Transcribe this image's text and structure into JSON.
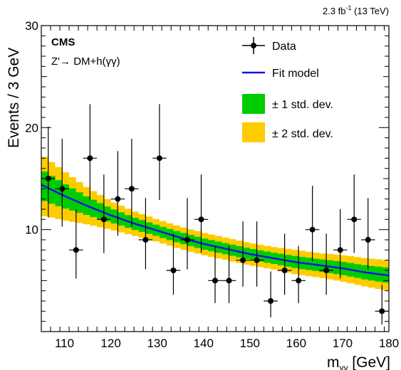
{
  "chart_data": {
    "type": "scatter",
    "header_lumi": "2.3 fb",
    "header_lumi_sup": "-1",
    "header_energy": " (13 TeV)",
    "experiment": "CMS",
    "process_prefix": "Z'",
    "process_arrow": "→",
    "process_suffix": " DM+h(γγ)",
    "ylabel": "Events / 3 GeV",
    "xlabel_main": "m",
    "xlabel_sub": "γγ",
    "xlabel_unit": " [GeV]",
    "xlim": [
      105,
      180
    ],
    "ylim": [
      0,
      30
    ],
    "x_ticks": [
      110,
      120,
      130,
      140,
      150,
      160,
      170,
      180
    ],
    "y_ticks": [
      10,
      20,
      30
    ],
    "legend": [
      {
        "label": "Data",
        "kind": "marker"
      },
      {
        "label": "Fit model",
        "kind": "line"
      },
      {
        "label": "± 1 std. dev.",
        "kind": "band1"
      },
      {
        "label": "± 2 std. dev.",
        "kind": "band2"
      }
    ],
    "colors": {
      "fit": "#1414e6",
      "band1": "#00cc00",
      "band2": "#ffcc00",
      "data": "#000000"
    },
    "data": {
      "x": [
        106.5,
        109.5,
        112.5,
        115.5,
        118.5,
        121.5,
        124.5,
        127.5,
        130.5,
        133.5,
        136.5,
        139.5,
        142.5,
        145.5,
        148.5,
        151.5,
        154.5,
        157.5,
        160.5,
        163.5,
        166.5,
        169.5,
        172.5,
        175.5,
        178.5
      ],
      "y": [
        15,
        14,
        8,
        17,
        11,
        13,
        14,
        9,
        17,
        6,
        9,
        11,
        5,
        5,
        7,
        7,
        3,
        6,
        5,
        10,
        6,
        8,
        11,
        9,
        2
      ],
      "yerr_low": [
        3.8,
        3.7,
        2.8,
        4.1,
        3.3,
        3.6,
        3.7,
        2.9,
        4.1,
        2.4,
        2.9,
        3.3,
        2.2,
        2.2,
        2.6,
        2.6,
        1.6,
        2.4,
        2.2,
        3.1,
        2.4,
        2.8,
        3.3,
        2.9,
        1.3
      ],
      "yerr_high": [
        5.1,
        4.9,
        4.0,
        5.3,
        4.4,
        4.7,
        4.9,
        4.1,
        5.3,
        3.6,
        4.1,
        4.4,
        3.4,
        3.4,
        3.8,
        3.8,
        2.9,
        3.6,
        3.4,
        4.3,
        3.6,
        4.0,
        4.4,
        4.1,
        2.6
      ],
      "xerr": 1.5
    },
    "fit_model": {
      "x": [
        105,
        110,
        115,
        120,
        125,
        130,
        135,
        140,
        145,
        150,
        155,
        160,
        165,
        170,
        175,
        180
      ],
      "y": [
        14.4,
        13.3,
        12.3,
        11.4,
        10.6,
        9.9,
        9.2,
        8.6,
        8.1,
        7.6,
        7.2,
        6.8,
        6.5,
        6.2,
        5.8,
        5.5
      ]
    },
    "band_1sigma": {
      "half_width": [
        1.5,
        1.2,
        0.9,
        0.7,
        0.6,
        0.55,
        0.55,
        0.55,
        0.55,
        0.55,
        0.55,
        0.6,
        0.6,
        0.65,
        0.7,
        0.75
      ]
    },
    "band_2sigma": {
      "half_width": [
        3.0,
        2.4,
        1.8,
        1.4,
        1.2,
        1.1,
        1.1,
        1.1,
        1.1,
        1.1,
        1.1,
        1.2,
        1.2,
        1.3,
        1.4,
        1.5
      ]
    }
  }
}
